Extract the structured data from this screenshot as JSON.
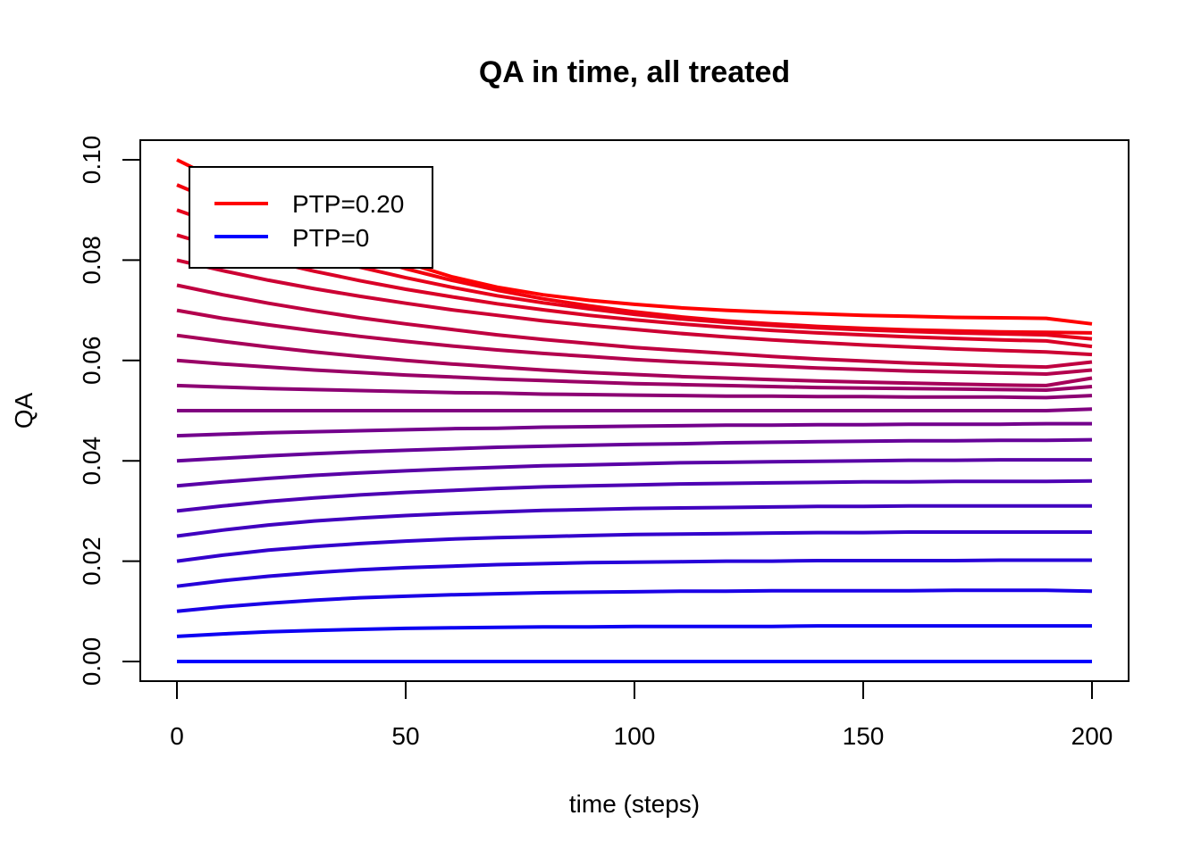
{
  "colors": {
    "start": "#FF0000",
    "end": "#0000FF",
    "axis": "#000000",
    "background": "#FFFFFF"
  },
  "chart_data": {
    "type": "line",
    "title": "QA in time, all treated",
    "xlabel": "time (steps)",
    "ylabel": "QA",
    "xlim": [
      0,
      200
    ],
    "ylim": [
      0,
      0.1
    ],
    "x_ticks": [
      0,
      50,
      100,
      150,
      200
    ],
    "x_tick_labels": [
      "0",
      "50",
      "100",
      "150",
      "200"
    ],
    "y_ticks": [
      0,
      0.02,
      0.04,
      0.06,
      0.08,
      0.1
    ],
    "y_tick_labels": [
      "0.00",
      "0.02",
      "0.04",
      "0.06",
      "0.08",
      "0.10"
    ],
    "grid": false,
    "legend_position": "top-left",
    "legend": [
      {
        "label": "PTP=0.20",
        "color": "#FF0000"
      },
      {
        "label": "PTP=0",
        "color": "#0000FF"
      }
    ],
    "x": [
      0,
      10,
      20,
      30,
      40,
      50,
      60,
      70,
      80,
      90,
      100,
      110,
      120,
      130,
      140,
      150,
      160,
      170,
      180,
      190,
      200
    ],
    "series": [
      {
        "values": [
          0.1,
          0.0955,
          0.0904,
          0.0868,
          0.0835,
          0.0795,
          0.0767,
          0.0746,
          0.0731,
          0.072,
          0.0712,
          0.0705,
          0.07,
          0.0696,
          0.0693,
          0.069,
          0.0688,
          0.0686,
          0.0685,
          0.0684,
          0.0673
        ]
      },
      {
        "values": [
          0.095,
          0.0912,
          0.0873,
          0.0839,
          0.0809,
          0.0783,
          0.076,
          0.074,
          0.0723,
          0.0709,
          0.0697,
          0.0687,
          0.0679,
          0.0673,
          0.0668,
          0.0664,
          0.0661,
          0.0659,
          0.0657,
          0.0656,
          0.0655
        ]
      },
      {
        "values": [
          0.09,
          0.0868,
          0.0837,
          0.081,
          0.0786,
          0.0765,
          0.0746,
          0.0729,
          0.0715,
          0.0703,
          0.0692,
          0.0683,
          0.0676,
          0.067,
          0.0665,
          0.0661,
          0.0658,
          0.0655,
          0.0653,
          0.0651,
          0.0643
        ]
      },
      {
        "values": [
          0.085,
          0.0823,
          0.0799,
          0.0778,
          0.0759,
          0.0742,
          0.0727,
          0.0713,
          0.0701,
          0.069,
          0.0681,
          0.0673,
          0.0666,
          0.066,
          0.0655,
          0.0651,
          0.0647,
          0.0644,
          0.0641,
          0.0639,
          0.0628
        ]
      },
      {
        "values": [
          0.08,
          0.0779,
          0.076,
          0.0743,
          0.0728,
          0.0714,
          0.0701,
          0.069,
          0.0679,
          0.067,
          0.0662,
          0.0654,
          0.0647,
          0.0641,
          0.0636,
          0.0631,
          0.0627,
          0.0623,
          0.062,
          0.0617,
          0.0612
        ]
      },
      {
        "values": [
          0.075,
          0.0731,
          0.0714,
          0.0699,
          0.0685,
          0.0673,
          0.0662,
          0.0651,
          0.0642,
          0.0634,
          0.0626,
          0.062,
          0.0614,
          0.0608,
          0.0603,
          0.0599,
          0.0595,
          0.0592,
          0.0589,
          0.0587,
          0.0597
        ]
      },
      {
        "values": [
          0.07,
          0.0684,
          0.0671,
          0.0659,
          0.0648,
          0.0638,
          0.0629,
          0.0621,
          0.0614,
          0.0608,
          0.0602,
          0.0597,
          0.0593,
          0.0589,
          0.0585,
          0.0582,
          0.0579,
          0.0577,
          0.0575,
          0.0573,
          0.0581
        ]
      },
      {
        "values": [
          0.065,
          0.0638,
          0.0627,
          0.0617,
          0.0608,
          0.06,
          0.0593,
          0.0587,
          0.0581,
          0.0576,
          0.0572,
          0.0568,
          0.0565,
          0.0562,
          0.0559,
          0.0557,
          0.0555,
          0.0553,
          0.0551,
          0.055,
          0.0565
        ]
      },
      {
        "values": [
          0.06,
          0.0593,
          0.0587,
          0.0581,
          0.0576,
          0.0571,
          0.0567,
          0.0563,
          0.056,
          0.0557,
          0.0554,
          0.0552,
          0.055,
          0.0548,
          0.0546,
          0.0545,
          0.0544,
          0.0543,
          0.0542,
          0.0541,
          0.0548
        ]
      },
      {
        "values": [
          0.055,
          0.0547,
          0.0544,
          0.0542,
          0.054,
          0.0538,
          0.0536,
          0.0535,
          0.0533,
          0.0532,
          0.0531,
          0.053,
          0.0529,
          0.0529,
          0.0528,
          0.0528,
          0.0527,
          0.0527,
          0.0527,
          0.0526,
          0.053
        ]
      },
      {
        "values": [
          0.05,
          0.05,
          0.05,
          0.05,
          0.05,
          0.05,
          0.05,
          0.05,
          0.05,
          0.05,
          0.05,
          0.05,
          0.05,
          0.05,
          0.05,
          0.05,
          0.05,
          0.05,
          0.05,
          0.05,
          0.0503
        ]
      },
      {
        "values": [
          0.045,
          0.0453,
          0.0456,
          0.0458,
          0.046,
          0.0462,
          0.0464,
          0.0465,
          0.0467,
          0.0468,
          0.0469,
          0.047,
          0.0471,
          0.0471,
          0.0472,
          0.0472,
          0.0473,
          0.0473,
          0.0473,
          0.0474,
          0.0474
        ]
      },
      {
        "values": [
          0.04,
          0.0405,
          0.041,
          0.0414,
          0.0418,
          0.0421,
          0.0424,
          0.0427,
          0.0429,
          0.0431,
          0.0433,
          0.0434,
          0.0436,
          0.0437,
          0.0438,
          0.0439,
          0.044,
          0.044,
          0.0441,
          0.0441,
          0.0442
        ]
      },
      {
        "values": [
          0.035,
          0.0358,
          0.0365,
          0.0371,
          0.0376,
          0.038,
          0.0384,
          0.0387,
          0.039,
          0.0392,
          0.0394,
          0.0396,
          0.0397,
          0.0398,
          0.0399,
          0.04,
          0.0401,
          0.0401,
          0.0402,
          0.0402,
          0.0402
        ]
      },
      {
        "values": [
          0.03,
          0.031,
          0.0319,
          0.0326,
          0.0332,
          0.0337,
          0.0341,
          0.0345,
          0.0348,
          0.035,
          0.0352,
          0.0354,
          0.0355,
          0.0356,
          0.0357,
          0.0358,
          0.0358,
          0.0359,
          0.0359,
          0.0359,
          0.036
        ]
      },
      {
        "values": [
          0.025,
          0.0262,
          0.0272,
          0.028,
          0.0286,
          0.0291,
          0.0295,
          0.0298,
          0.0301,
          0.0303,
          0.0305,
          0.0306,
          0.0307,
          0.0308,
          0.0309,
          0.0309,
          0.031,
          0.031,
          0.031,
          0.031,
          0.031
        ]
      },
      {
        "values": [
          0.02,
          0.0212,
          0.0222,
          0.0229,
          0.0235,
          0.024,
          0.0244,
          0.0247,
          0.0249,
          0.0251,
          0.0253,
          0.0254,
          0.0255,
          0.0256,
          0.0257,
          0.0257,
          0.0258,
          0.0258,
          0.0258,
          0.0258,
          0.0258
        ]
      },
      {
        "values": [
          0.015,
          0.0161,
          0.017,
          0.0177,
          0.0183,
          0.0187,
          0.019,
          0.0193,
          0.0195,
          0.0197,
          0.0198,
          0.0199,
          0.02,
          0.02,
          0.0201,
          0.0201,
          0.0201,
          0.0201,
          0.0202,
          0.0202,
          0.0202
        ]
      },
      {
        "values": [
          0.01,
          0.0109,
          0.0116,
          0.0122,
          0.0127,
          0.013,
          0.0133,
          0.0135,
          0.0137,
          0.0138,
          0.0139,
          0.014,
          0.014,
          0.0141,
          0.0141,
          0.0141,
          0.0141,
          0.0142,
          0.0142,
          0.0142,
          0.014
        ]
      },
      {
        "values": [
          0.005,
          0.0055,
          0.0059,
          0.0062,
          0.0064,
          0.0066,
          0.0067,
          0.0068,
          0.0069,
          0.0069,
          0.007,
          0.007,
          0.007,
          0.007,
          0.0071,
          0.0071,
          0.0071,
          0.0071,
          0.0071,
          0.0071,
          0.0071
        ]
      },
      {
        "values": [
          0,
          0,
          0,
          0,
          0,
          0,
          0,
          0,
          0,
          0,
          0,
          0,
          0,
          0,
          0,
          0,
          0,
          0,
          0,
          0,
          0
        ]
      }
    ]
  }
}
